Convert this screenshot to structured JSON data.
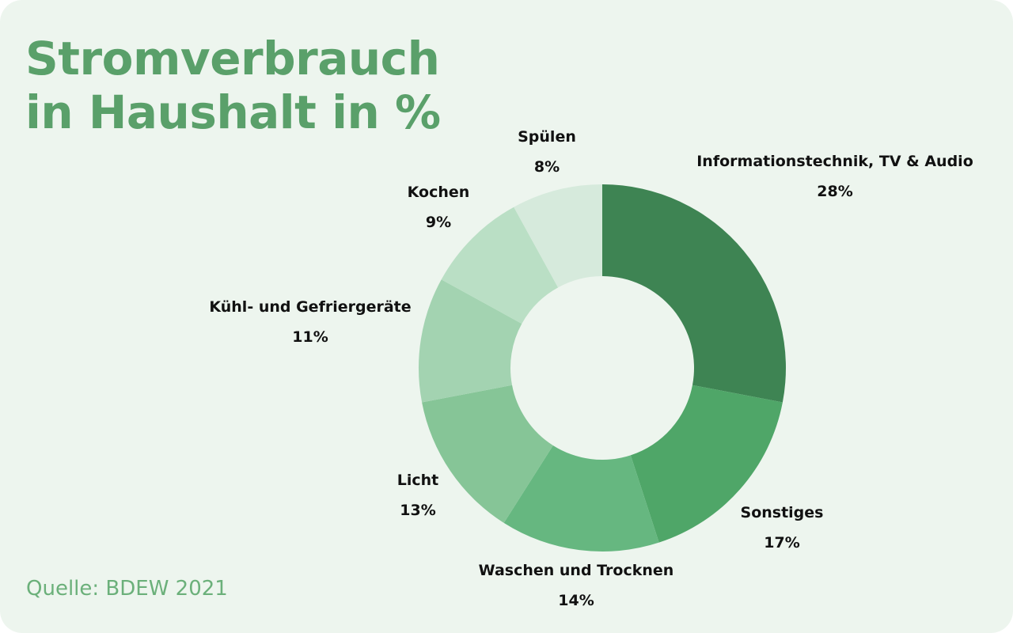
{
  "header": {
    "title_line1": "Stromverbrauch",
    "title_line2": "in Haushalt in %"
  },
  "footer": {
    "source": "Quelle: BDEW 2021"
  },
  "chart_data": {
    "type": "pie",
    "title": "Stromverbrauch in Haushalt in %",
    "donut": true,
    "unit": "%",
    "categories": [
      "Informationstechnik, TV & Audio",
      "Sonstiges",
      "Waschen und Trocknen",
      "Licht",
      "Kühl- und Gefriergeräte",
      "Kochen",
      "Spülen"
    ],
    "values": [
      28,
      17,
      14,
      13,
      11,
      9,
      8
    ],
    "value_labels": [
      "28%",
      "17%",
      "14%",
      "13%",
      "11%",
      "9%",
      "8%"
    ],
    "colors": [
      "#3e8453",
      "#4fa668",
      "#66b780",
      "#86c597",
      "#a3d3b1",
      "#badfc5",
      "#d6eadc"
    ]
  }
}
